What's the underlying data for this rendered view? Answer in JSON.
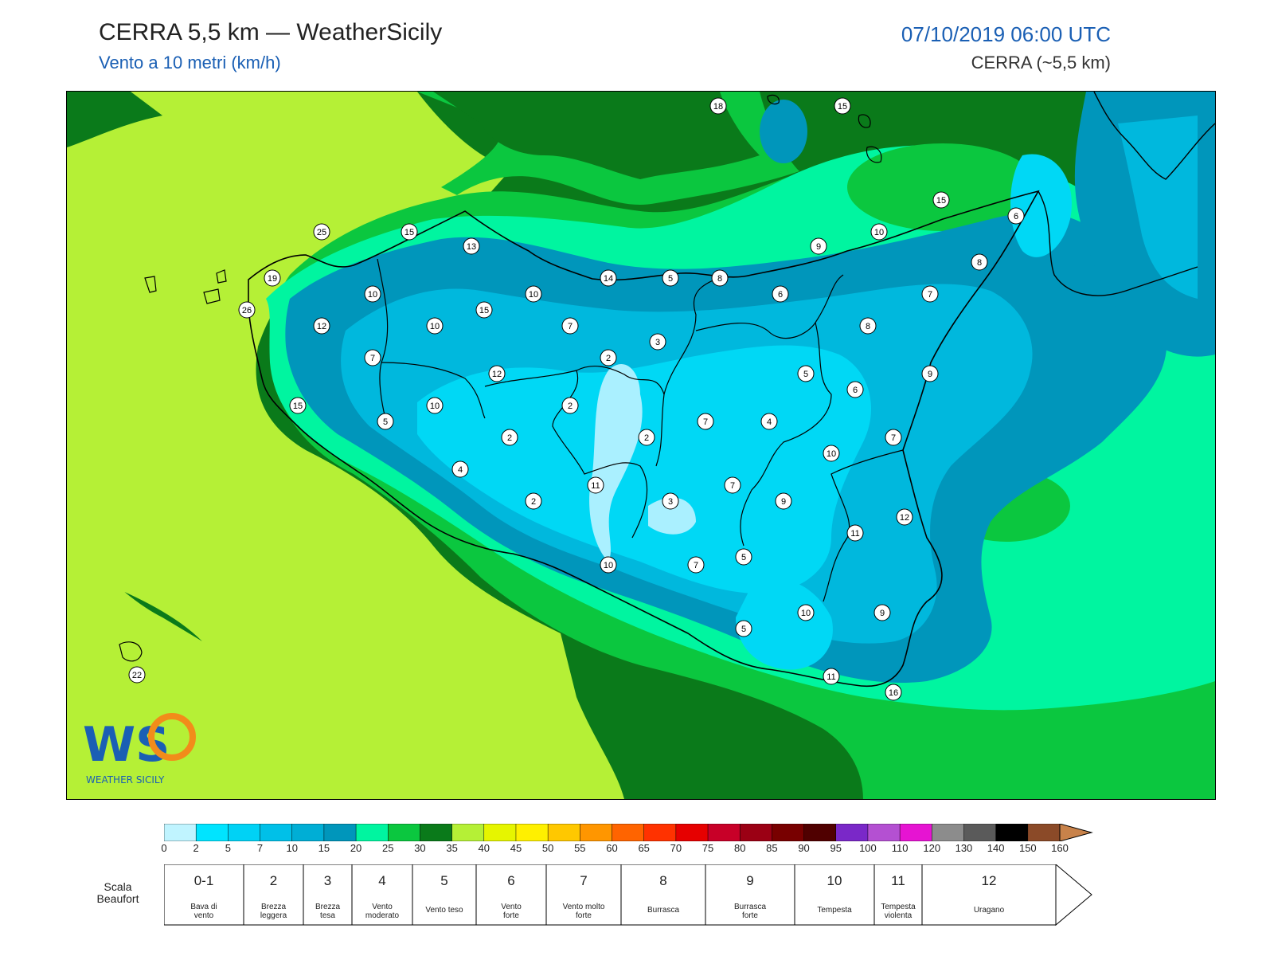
{
  "header": {
    "title": "CERRA 5,5 km — WeatherSicily",
    "subtitle": "Vento a 10 metri (km/h)",
    "datetime": "07/10/2019 06:00 UTC",
    "model": "CERRA (~5,5 km)"
  },
  "colors": {
    "sea_light": "#b5f036",
    "sea_dark": "#0a7a1a",
    "green_mid": "#0bc73f",
    "aqua": "#00f5a0",
    "blue_dark": "#0096bb",
    "blue_mid": "#00b8dd",
    "cyan": "#00d8f5",
    "cyan_light": "#aaf0ff"
  },
  "station_values": [
    "18",
    "15",
    "15",
    "10",
    "6",
    "25",
    "15",
    "13",
    "14",
    "5",
    "8",
    "9",
    "8",
    "19",
    "10",
    "10",
    "6",
    "7",
    "26",
    "12",
    "15",
    "10",
    "7",
    "7",
    "8",
    "2",
    "3",
    "12",
    "5",
    "6",
    "9",
    "10",
    "2",
    "7",
    "4",
    "15",
    "5",
    "2",
    "2",
    "7",
    "10",
    "4",
    "11",
    "7",
    "9",
    "3",
    "2",
    "12",
    "11",
    "5",
    "10",
    "7",
    "10",
    "5",
    "9",
    "11",
    "16",
    "22"
  ],
  "legend": {
    "scale_ticks": [
      "0",
      "2",
      "5",
      "7",
      "10",
      "15",
      "20",
      "25",
      "30",
      "35",
      "40",
      "45",
      "50",
      "55",
      "60",
      "65",
      "70",
      "75",
      "80",
      "85",
      "90",
      "95",
      "100",
      "110",
      "120",
      "130",
      "140",
      "150",
      "160"
    ],
    "scale_colors": [
      "#c0f4ff",
      "#00e4ff",
      "#00d2f5",
      "#00c0e8",
      "#00aed5",
      "#0096bb",
      "#00f5a0",
      "#0bc73f",
      "#0a7a1a",
      "#b5f036",
      "#e6f500",
      "#fff000",
      "#ffc800",
      "#ff9600",
      "#ff6400",
      "#ff3200",
      "#e60000",
      "#c80028",
      "#9b0014",
      "#780000",
      "#500000",
      "#7a28c8",
      "#b450d2",
      "#e614d2",
      "#8c8c8c",
      "#5a5a5a",
      "#000000",
      "#8b4a28",
      "#c8824a"
    ],
    "beaufort_label": "Scala Beaufort",
    "beaufort": [
      {
        "num": "0-1",
        "desc1": "Bava di",
        "desc2": "vento"
      },
      {
        "num": "2",
        "desc1": "Brezza",
        "desc2": "leggera"
      },
      {
        "num": "3",
        "desc1": "Brezza",
        "desc2": "tesa"
      },
      {
        "num": "4",
        "desc1": "Vento",
        "desc2": "moderato"
      },
      {
        "num": "5",
        "desc1": "Vento teso",
        "desc2": ""
      },
      {
        "num": "6",
        "desc1": "Vento",
        "desc2": "forte"
      },
      {
        "num": "7",
        "desc1": "Vento molto",
        "desc2": "forte"
      },
      {
        "num": "8",
        "desc1": "Burrasca",
        "desc2": ""
      },
      {
        "num": "9",
        "desc1": "Burrasca",
        "desc2": "forte"
      },
      {
        "num": "10",
        "desc1": "Tempesta",
        "desc2": ""
      },
      {
        "num": "11",
        "desc1": "Tempesta",
        "desc2": "violenta"
      },
      {
        "num": "12",
        "desc1": "Uragano",
        "desc2": ""
      }
    ]
  },
  "logo": {
    "letters": "WS",
    "caption": "WEATHER SICILY"
  }
}
